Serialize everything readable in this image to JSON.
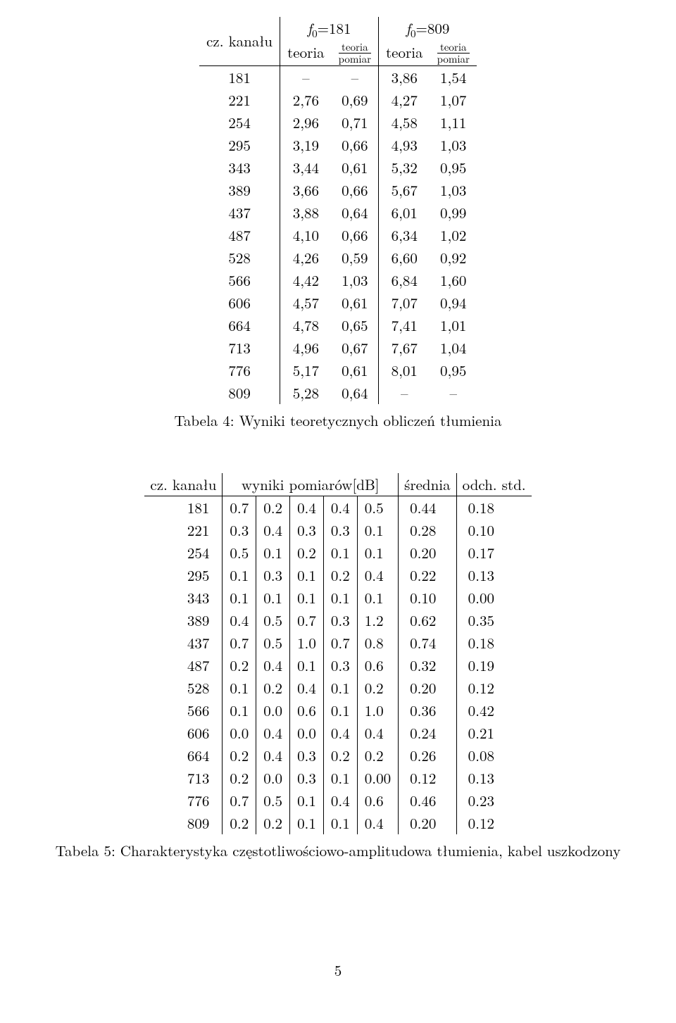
{
  "table4": {
    "header": {
      "rowlabel": "cz. kanału",
      "f0_181": "f",
      "f0_181_sub": "0",
      "f0_181_val": "=181",
      "f0_809": "f",
      "f0_809_sub": "0",
      "f0_809_val": "=809",
      "teoria": "teoria",
      "frac_num": "teoria",
      "frac_den": "pomiar"
    },
    "rows": [
      [
        "181",
        "–",
        "–",
        "3,86",
        "1,54"
      ],
      [
        "221",
        "2,76",
        "0,69",
        "4,27",
        "1,07"
      ],
      [
        "254",
        "2,96",
        "0,71",
        "4,58",
        "1,11"
      ],
      [
        "295",
        "3,19",
        "0,66",
        "4,93",
        "1,03"
      ],
      [
        "343",
        "3,44",
        "0,61",
        "5,32",
        "0,95"
      ],
      [
        "389",
        "3,66",
        "0,66",
        "5,67",
        "1,03"
      ],
      [
        "437",
        "3,88",
        "0,64",
        "6,01",
        "0,99"
      ],
      [
        "487",
        "4,10",
        "0,66",
        "6,34",
        "1,02"
      ],
      [
        "528",
        "4,26",
        "0,59",
        "6,60",
        "0,92"
      ],
      [
        "566",
        "4,42",
        "1,03",
        "6,84",
        "1,60"
      ],
      [
        "606",
        "4,57",
        "0,61",
        "7,07",
        "0,94"
      ],
      [
        "664",
        "4,78",
        "0,65",
        "7,41",
        "1,01"
      ],
      [
        "713",
        "4,96",
        "0,67",
        "7,67",
        "1,04"
      ],
      [
        "776",
        "5,17",
        "0,61",
        "8,01",
        "0,95"
      ],
      [
        "809",
        "5,28",
        "0,64",
        "–",
        "–"
      ]
    ],
    "caption": "Tabela 4: Wyniki teoretycznych obliczeń tłumienia"
  },
  "table5": {
    "header": {
      "cz": "cz. kanału",
      "wyniki": "wyniki pomiarów[dB]",
      "srednia": "średnia",
      "odch": "odch. std."
    },
    "rows": [
      [
        "181",
        "0.7",
        "0.2",
        "0.4",
        "0.4",
        "0.5",
        "0.44",
        "0.18"
      ],
      [
        "221",
        "0.3",
        "0.4",
        "0.3",
        "0.3",
        "0.1",
        "0.28",
        "0.10"
      ],
      [
        "254",
        "0.5",
        "0.1",
        "0.2",
        "0.1",
        "0.1",
        "0.20",
        "0.17"
      ],
      [
        "295",
        "0.1",
        "0.3",
        "0.1",
        "0.2",
        "0.4",
        "0.22",
        "0.13"
      ],
      [
        "343",
        "0.1",
        "0.1",
        "0.1",
        "0.1",
        "0.1",
        "0.10",
        "0.00"
      ],
      [
        "389",
        "0.4",
        "0.5",
        "0.7",
        "0.3",
        "1.2",
        "0.62",
        "0.35"
      ],
      [
        "437",
        "0.7",
        "0.5",
        "1.0",
        "0.7",
        "0.8",
        "0.74",
        "0.18"
      ],
      [
        "487",
        "0.2",
        "0.4",
        "0.1",
        "0.3",
        "0.6",
        "0.32",
        "0.19"
      ],
      [
        "528",
        "0.1",
        "0.2",
        "0.4",
        "0.1",
        "0.2",
        "0.20",
        "0.12"
      ],
      [
        "566",
        "0.1",
        "0.0",
        "0.6",
        "0.1",
        "1.0",
        "0.36",
        "0.42"
      ],
      [
        "606",
        "0.0",
        "0.4",
        "0.0",
        "0.4",
        "0.4",
        "0.24",
        "0.21"
      ],
      [
        "664",
        "0.2",
        "0.4",
        "0.3",
        "0.2",
        "0.2",
        "0.26",
        "0.08"
      ],
      [
        "713",
        "0.2",
        "0.0",
        "0.3",
        "0.1",
        "0.00",
        "0.12",
        "0.13"
      ],
      [
        "776",
        "0.7",
        "0.5",
        "0.1",
        "0.4",
        "0.6",
        "0.46",
        "0.23"
      ],
      [
        "809",
        "0.2",
        "0.2",
        "0.1",
        "0.1",
        "0.4",
        "0.20",
        "0.12"
      ]
    ],
    "caption": "Tabela 5: Charakterystyka częstotliwościowo-amplitudowa tłumienia, kabel uszkodzony"
  },
  "page_number": "5"
}
